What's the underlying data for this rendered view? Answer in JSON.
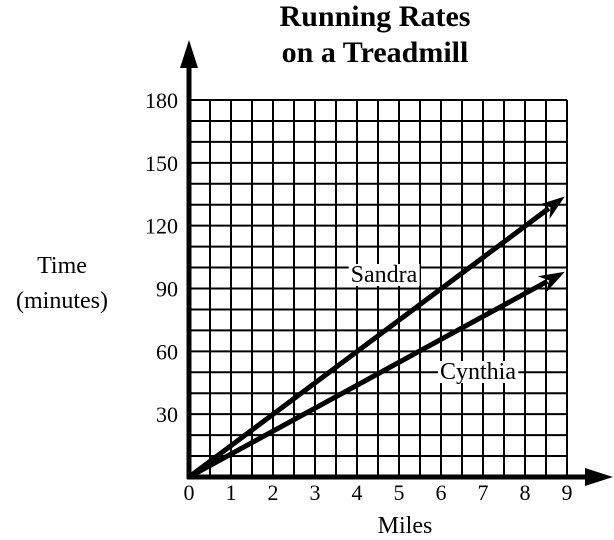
{
  "chart_data": {
    "type": "line",
    "title": [
      "Running Rates",
      "on a Treadmill"
    ],
    "xlabel": "Miles",
    "ylabel": [
      "Time",
      "(minutes)"
    ],
    "xlim": [
      0,
      9
    ],
    "ylim": [
      0,
      180
    ],
    "x_ticks": [
      "0",
      "1",
      "2",
      "3",
      "4",
      "5",
      "6",
      "7",
      "8",
      "9"
    ],
    "y_ticks": [
      "30",
      "60",
      "90",
      "120",
      "150",
      "180"
    ],
    "y_tick_values": [
      30,
      60,
      90,
      120,
      150,
      180
    ],
    "grid": true,
    "x_minor_step": 0.5,
    "y_minor_step": 10,
    "series": [
      {
        "name": "Sandra",
        "points": [
          [
            0,
            0
          ],
          [
            8.95,
            134
          ]
        ],
        "rate_min_per_mile": 15
      },
      {
        "name": "Cynthia",
        "points": [
          [
            0,
            0
          ],
          [
            8.95,
            98
          ]
        ],
        "rate_min_per_mile": 11
      }
    ]
  }
}
